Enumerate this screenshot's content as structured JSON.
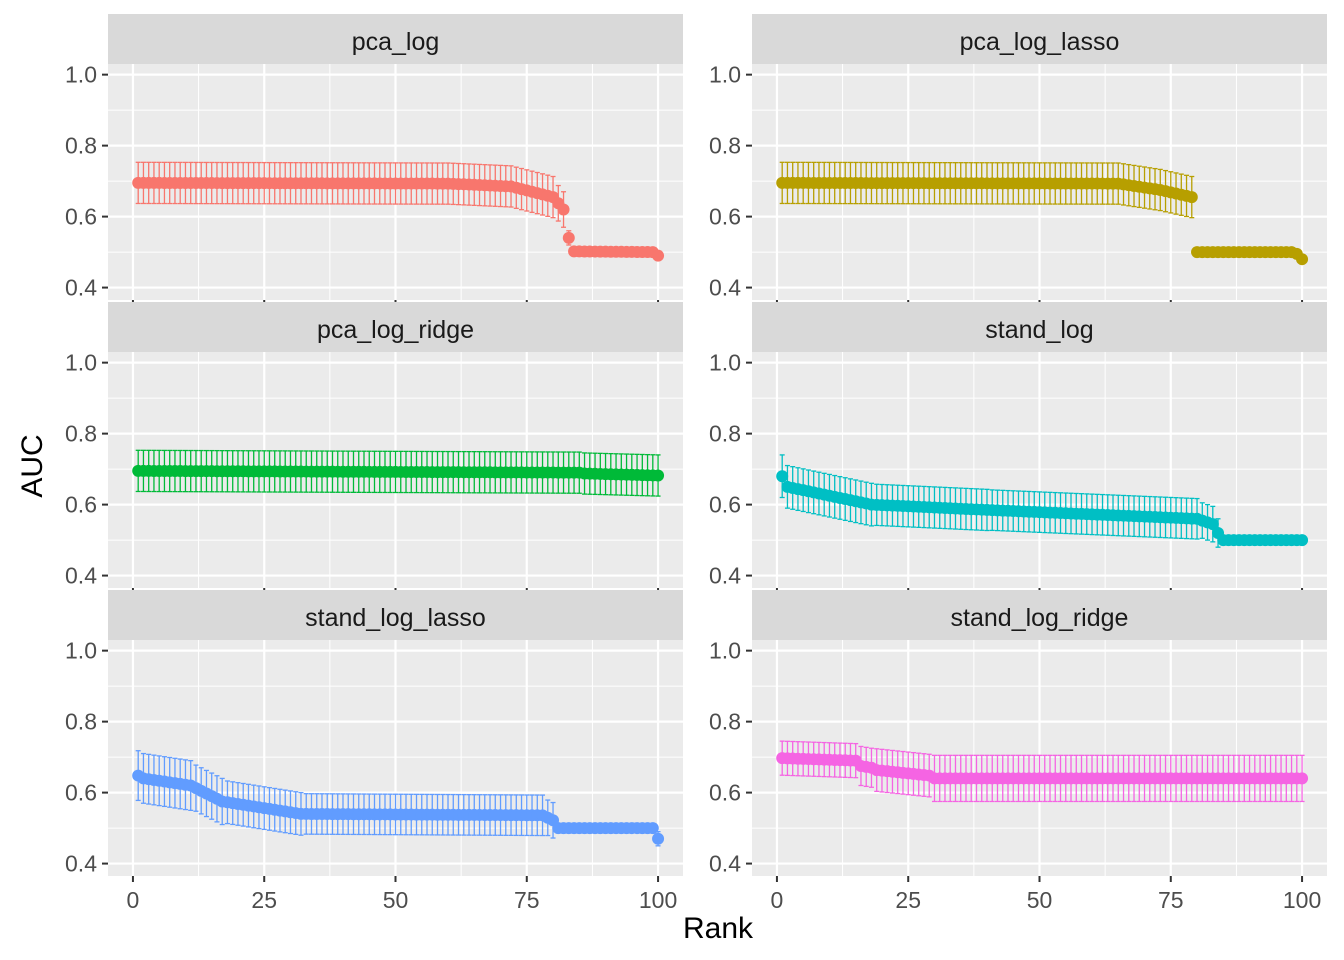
{
  "chart_data": {
    "type": "scatter",
    "subtype": "faceted point plot with error bars",
    "xlabel": "Rank",
    "ylabel": "AUC",
    "xlim": [
      0,
      100
    ],
    "ylim": [
      0.4,
      1.0
    ],
    "x_ticks": [
      0,
      25,
      50,
      75,
      100
    ],
    "y_ticks": [
      0.4,
      0.6,
      0.8,
      1.0
    ],
    "y_tick_labels": [
      "0.4",
      "0.6",
      "0.8",
      "1.0"
    ],
    "grid": true,
    "legend": "none",
    "facets": [
      {
        "name": "pca_log",
        "color": "#F8766D",
        "segments": [
          {
            "from": 1,
            "to": 60,
            "y0": 0.695,
            "y1": 0.693,
            "err": 0.058
          },
          {
            "from": 60,
            "to": 72,
            "y0": 0.693,
            "y1": 0.685,
            "err": 0.058
          },
          {
            "from": 72,
            "to": 80,
            "y0": 0.685,
            "y1": 0.655,
            "err": 0.058
          },
          {
            "from": 80,
            "to": 82,
            "y0": 0.655,
            "y1": 0.62,
            "err": 0.05
          },
          {
            "from": 83,
            "to": 83,
            "y0": 0.54,
            "y1": 0.54,
            "err": 0.02
          },
          {
            "from": 84,
            "to": 99,
            "y0": 0.502,
            "y1": 0.5,
            "err": 0.0
          },
          {
            "from": 100,
            "to": 100,
            "y0": 0.49,
            "y1": 0.49,
            "err": 0.01
          }
        ]
      },
      {
        "name": "pca_log_lasso",
        "color": "#B79F00",
        "segments": [
          {
            "from": 1,
            "to": 65,
            "y0": 0.695,
            "y1": 0.693,
            "err": 0.058
          },
          {
            "from": 65,
            "to": 73,
            "y0": 0.693,
            "y1": 0.675,
            "err": 0.058
          },
          {
            "from": 73,
            "to": 79,
            "y0": 0.675,
            "y1": 0.655,
            "err": 0.058
          },
          {
            "from": 80,
            "to": 98,
            "y0": 0.5,
            "y1": 0.5,
            "err": 0.0
          },
          {
            "from": 99,
            "to": 99,
            "y0": 0.495,
            "y1": 0.495,
            "err": 0.005
          },
          {
            "from": 100,
            "to": 100,
            "y0": 0.48,
            "y1": 0.48,
            "err": 0.005
          }
        ]
      },
      {
        "name": "pca_log_ridge",
        "color": "#00BA38",
        "segments": [
          {
            "from": 1,
            "to": 85,
            "y0": 0.695,
            "y1": 0.69,
            "err": 0.058
          },
          {
            "from": 85,
            "to": 100,
            "y0": 0.688,
            "y1": 0.682,
            "err": 0.058
          }
        ]
      },
      {
        "name": "stand_log",
        "color": "#00BFC4",
        "segments": [
          {
            "from": 1,
            "to": 1,
            "y0": 0.68,
            "y1": 0.68,
            "err": 0.06
          },
          {
            "from": 2,
            "to": 18,
            "y0": 0.65,
            "y1": 0.6,
            "err": 0.06
          },
          {
            "from": 18,
            "to": 40,
            "y0": 0.6,
            "y1": 0.585,
            "err": 0.058
          },
          {
            "from": 40,
            "to": 80,
            "y0": 0.585,
            "y1": 0.56,
            "err": 0.057
          },
          {
            "from": 80,
            "to": 83,
            "y0": 0.56,
            "y1": 0.545,
            "err": 0.05
          },
          {
            "from": 84,
            "to": 84,
            "y0": 0.52,
            "y1": 0.52,
            "err": 0.04
          },
          {
            "from": 85,
            "to": 100,
            "y0": 0.5,
            "y1": 0.5,
            "err": 0.0
          }
        ]
      },
      {
        "name": "stand_log_lasso",
        "color": "#619CFF",
        "segments": [
          {
            "from": 1,
            "to": 1,
            "y0": 0.648,
            "y1": 0.648,
            "err": 0.07
          },
          {
            "from": 2,
            "to": 11,
            "y0": 0.64,
            "y1": 0.62,
            "err": 0.07
          },
          {
            "from": 11,
            "to": 17,
            "y0": 0.62,
            "y1": 0.575,
            "err": 0.065
          },
          {
            "from": 17,
            "to": 32,
            "y0": 0.575,
            "y1": 0.54,
            "err": 0.06
          },
          {
            "from": 32,
            "to": 78,
            "y0": 0.54,
            "y1": 0.536,
            "err": 0.057
          },
          {
            "from": 78,
            "to": 80,
            "y0": 0.536,
            "y1": 0.522,
            "err": 0.05
          },
          {
            "from": 81,
            "to": 99,
            "y0": 0.5,
            "y1": 0.5,
            "err": 0.0
          },
          {
            "from": 100,
            "to": 100,
            "y0": 0.47,
            "y1": 0.47,
            "err": 0.02
          }
        ]
      },
      {
        "name": "stand_log_ridge",
        "color": "#F564E3",
        "segments": [
          {
            "from": 1,
            "to": 15,
            "y0": 0.697,
            "y1": 0.69,
            "err": 0.048
          },
          {
            "from": 16,
            "to": 18,
            "y0": 0.675,
            "y1": 0.67,
            "err": 0.055
          },
          {
            "from": 18,
            "to": 29,
            "y0": 0.665,
            "y1": 0.648,
            "err": 0.06
          },
          {
            "from": 30,
            "to": 100,
            "y0": 0.64,
            "y1": 0.64,
            "err": 0.065
          }
        ]
      }
    ]
  }
}
